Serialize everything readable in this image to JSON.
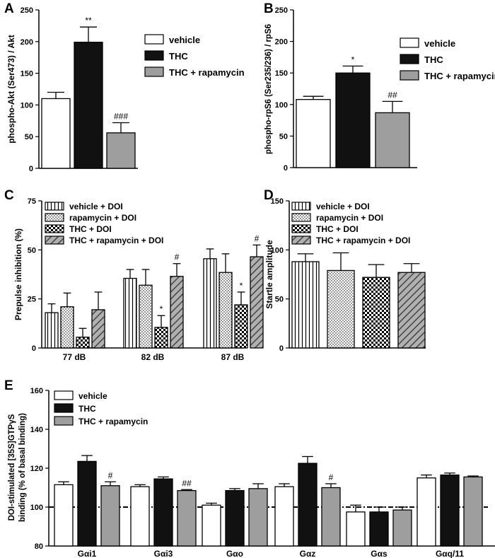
{
  "colors": {
    "vehicle": "#ffffff",
    "thc": "#111111",
    "thc_rapamycin": "#9e9e9e",
    "axis": "#000000"
  },
  "chart_data": [
    {
      "panel": "A",
      "type": "bar",
      "ylabel": "phospho-Akt (Ser473) / Akt",
      "ylim": [
        0,
        250
      ],
      "yticks": [
        0,
        50,
        100,
        150,
        200,
        250
      ],
      "series": [
        {
          "name": "vehicle",
          "value": 110,
          "error": 10,
          "annotation": "",
          "fill": "white"
        },
        {
          "name": "THC",
          "value": 199,
          "error": 24,
          "annotation": "**",
          "fill": "black"
        },
        {
          "name": "THC + rapamycin",
          "value": 56,
          "error": 16,
          "annotation": "###",
          "fill": "grey"
        }
      ],
      "legend_position": "top-right"
    },
    {
      "panel": "B",
      "type": "bar",
      "ylabel": "phospho-rpS6 (Ser235/236) / rpS6",
      "ylim": [
        0,
        250
      ],
      "yticks": [
        0,
        50,
        100,
        150,
        200,
        250
      ],
      "series": [
        {
          "name": "vehicle",
          "value": 108,
          "error": 5,
          "annotation": "",
          "fill": "white"
        },
        {
          "name": "THC",
          "value": 150,
          "error": 11,
          "annotation": "*",
          "fill": "black"
        },
        {
          "name": "THC + rapamycin",
          "value": 87,
          "error": 18,
          "annotation": "##",
          "fill": "grey"
        }
      ],
      "legend_position": "top-right"
    },
    {
      "panel": "C",
      "type": "bar",
      "ylabel": "Prepulse inhibition (%)",
      "ylim": [
        0,
        75
      ],
      "yticks": [
        0,
        25,
        50,
        75
      ],
      "categories": [
        "77 dB",
        "82 dB",
        "87 dB"
      ],
      "series": [
        {
          "name": "vehicle + DOI",
          "pattern": "vertical-stripes",
          "values": [
            18,
            35.5,
            45.5
          ],
          "errors": [
            4.5,
            4.5,
            5
          ],
          "annotations": [
            "",
            "",
            ""
          ]
        },
        {
          "name": "rapamycin + DOI",
          "pattern": "dots",
          "values": [
            21,
            32,
            38.5
          ],
          "errors": [
            7,
            8,
            9.5
          ],
          "annotations": [
            "",
            "",
            ""
          ]
        },
        {
          "name": "THC + DOI",
          "pattern": "checker",
          "values": [
            5.5,
            10.5,
            22
          ],
          "errors": [
            4.5,
            6,
            6.5
          ],
          "annotations": [
            "",
            "*",
            "*"
          ]
        },
        {
          "name": "THC + rapamycin + DOI",
          "pattern": "diagonal-stripes",
          "values": [
            19.5,
            36.5,
            46.5
          ],
          "errors": [
            9,
            6.5,
            6
          ],
          "annotations": [
            "",
            "#",
            "#"
          ]
        }
      ],
      "legend_position": "top-left"
    },
    {
      "panel": "D",
      "type": "bar",
      "ylabel": "Startle amplitude",
      "ylim": [
        0,
        150
      ],
      "yticks": [
        0,
        50,
        100,
        150
      ],
      "series": [
        {
          "name": "vehicle + DOI",
          "pattern": "vertical-stripes",
          "value": 88,
          "error": 8
        },
        {
          "name": "rapamycin + DOI",
          "pattern": "dots",
          "value": 79,
          "error": 18
        },
        {
          "name": "THC + DOI",
          "pattern": "checker",
          "value": 72,
          "error": 13
        },
        {
          "name": "THC + rapamycin + DOI",
          "pattern": "diagonal-stripes",
          "value": 77,
          "error": 9
        }
      ],
      "legend_position": "top-left"
    },
    {
      "panel": "E",
      "type": "bar",
      "ylabel_line1": "DOI-stimulated [35S]GTPγS",
      "ylabel_line2": "binding (% of basal binding)",
      "ylim": [
        80,
        160
      ],
      "yticks": [
        80,
        100,
        120,
        140,
        160
      ],
      "baseline": 100,
      "categories": [
        "Gαi1",
        "Gαi3",
        "Gαo",
        "Gαz",
        "Gαs",
        "Gαq/11"
      ],
      "series": [
        {
          "name": "vehicle",
          "fill": "white",
          "values": [
            111.5,
            110.5,
            101,
            110.5,
            97.5,
            115
          ],
          "errors": [
            1.5,
            1,
            1,
            1.5,
            3.5,
            1.5
          ],
          "annotations": [
            "",
            "",
            "",
            "",
            "",
            ""
          ]
        },
        {
          "name": "THC",
          "fill": "black",
          "values": [
            123.5,
            114.5,
            108.5,
            122.5,
            97.5,
            116.5
          ],
          "errors": [
            3,
            1,
            1,
            3.5,
            2.5,
            1
          ],
          "annotations": [
            "",
            "",
            "",
            "",
            "",
            ""
          ]
        },
        {
          "name": "THC + rapamycin",
          "fill": "grey",
          "values": [
            111,
            108.5,
            109.5,
            110,
            98.5,
            115.5
          ],
          "errors": [
            2,
            0.5,
            2.5,
            2,
            1.5,
            0.5
          ],
          "annotations": [
            "#",
            "##",
            "",
            "#",
            "",
            ""
          ]
        }
      ],
      "legend_position": "top-left"
    }
  ]
}
